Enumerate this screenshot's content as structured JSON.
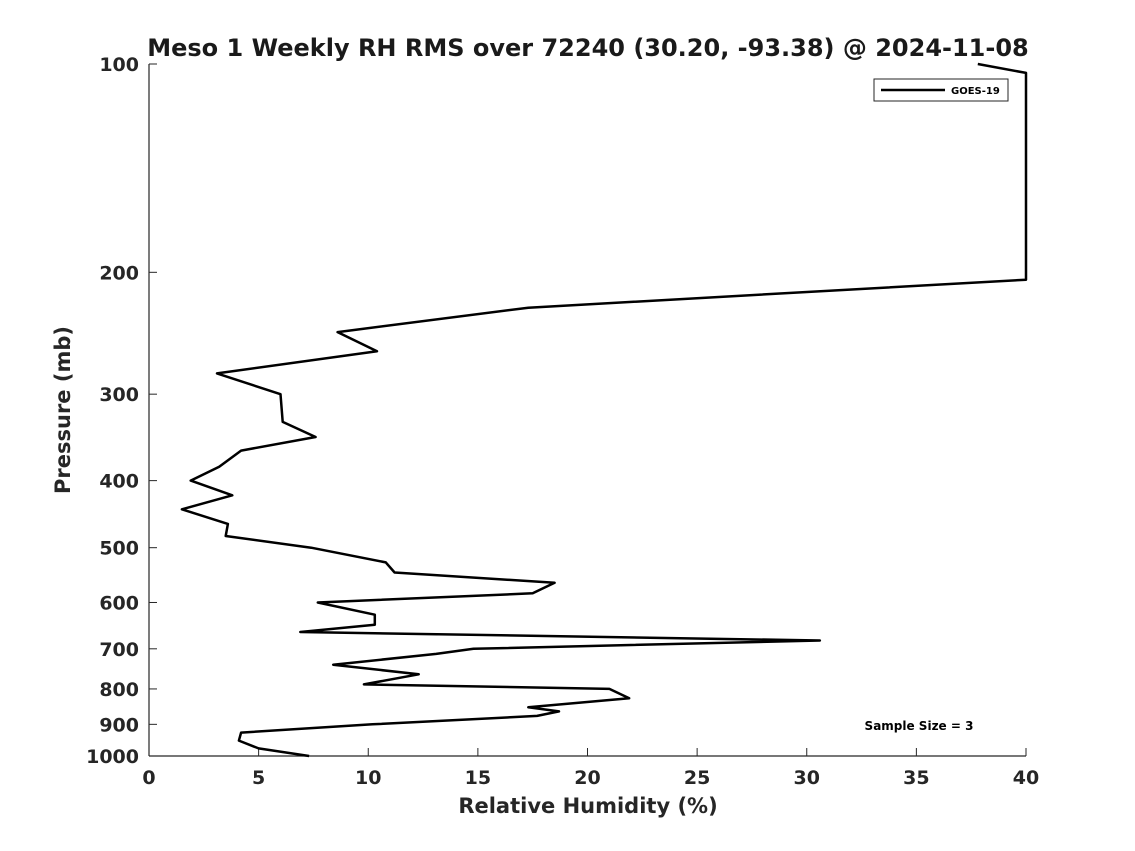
{
  "chart_data": {
    "type": "line",
    "title": "Meso 1 Weekly RH RMS over 72240 (30.20, -93.38) @ 2024-11-08",
    "xlabel": "Relative Humidity (%)",
    "ylabel": "Pressure (mb)",
    "xlim": [
      0,
      40
    ],
    "ylim": [
      100,
      1000
    ],
    "y_scale": "log",
    "y_reversed": true,
    "x_ticks": [
      "0",
      "5",
      "10",
      "15",
      "20",
      "25",
      "30",
      "35",
      "40"
    ],
    "y_ticks": [
      "100",
      "200",
      "300",
      "400",
      "500",
      "600",
      "700",
      "800",
      "900",
      "1000"
    ],
    "legend_position": "top-right",
    "annotation": "Sample Size = 3",
    "series": [
      {
        "name": "GOES-19",
        "color": "#000000",
        "points": [
          [
            7.3,
            1000
          ],
          [
            5.0,
            975
          ],
          [
            4.1,
            950
          ],
          [
            4.2,
            925
          ],
          [
            10.2,
            900
          ],
          [
            17.7,
            875
          ],
          [
            18.7,
            862
          ],
          [
            17.3,
            850
          ],
          [
            21.9,
            825
          ],
          [
            21.0,
            800
          ],
          [
            9.8,
            788
          ],
          [
            12.3,
            762
          ],
          [
            8.4,
            738
          ],
          [
            13.1,
            712
          ],
          [
            14.8,
            700
          ],
          [
            30.6,
            681
          ],
          [
            6.9,
            662
          ],
          [
            10.3,
            646
          ],
          [
            10.3,
            625
          ],
          [
            7.7,
            600
          ],
          [
            17.5,
            582
          ],
          [
            18.5,
            562
          ],
          [
            11.2,
            543
          ],
          [
            10.8,
            525
          ],
          [
            7.4,
            500
          ],
          [
            3.5,
            481
          ],
          [
            3.6,
            462
          ],
          [
            1.5,
            440
          ],
          [
            3.8,
            420
          ],
          [
            1.9,
            400
          ],
          [
            3.2,
            382
          ],
          [
            4.2,
            362
          ],
          [
            7.6,
            346
          ],
          [
            6.1,
            329
          ],
          [
            6.0,
            300
          ],
          [
            3.1,
            280
          ],
          [
            10.4,
            260
          ],
          [
            8.6,
            244
          ],
          [
            17.3,
            225
          ],
          [
            40.0,
            205
          ],
          [
            40.0,
            103
          ],
          [
            37.8,
            100
          ]
        ]
      }
    ]
  }
}
